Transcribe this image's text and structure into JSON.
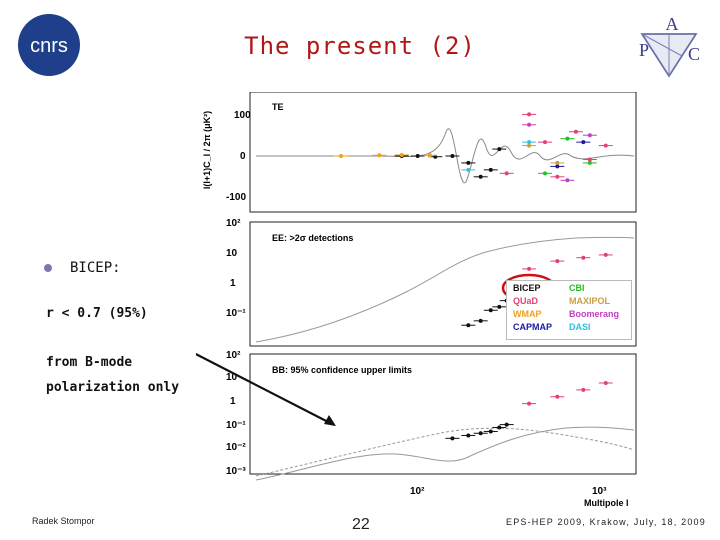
{
  "slide": {
    "title": "The present (2)",
    "bullet": "BICEP:",
    "r_limit": "r < 0.7 (95%)",
    "from_text": "from B-mode polarization only",
    "footer_left": "Radek Stompor",
    "page_number": "22",
    "footer_right": "EPS-HEP 2009, Krakow, July, 18, 2009",
    "accent_color": "#b01818"
  },
  "logos": {
    "cnrs": {
      "icon": "cnrs-logo",
      "text": "cnrs"
    },
    "apc": {
      "icon": "apc-logo",
      "letters": [
        "A",
        "P",
        "C"
      ]
    }
  },
  "chart_data": [
    {
      "type": "scatter",
      "panel": "TE",
      "title": "TE",
      "ylabel": "l(l+1)C_l / 2π (μK²)",
      "xscale": "log",
      "yticks": [
        "100",
        "0",
        "-100"
      ],
      "ylim": [
        -150,
        150
      ],
      "series": [
        {
          "name": "BICEP",
          "color": "#111111",
          "x": [
            30,
            40,
            55,
            75,
            100,
            125,
            150,
            175
          ],
          "y": [
            0,
            0,
            -2,
            0,
            -20,
            -60,
            -40,
            20
          ]
        },
        {
          "name": "QUaD",
          "color": "#e3407a",
          "x": [
            200,
            300,
            400,
            500,
            700,
            900,
            1200
          ],
          "y": [
            -50,
            120,
            40,
            -60,
            70,
            -10,
            30
          ]
        },
        {
          "name": "WMAP",
          "color": "#f0a020",
          "x": [
            10,
            20,
            30,
            50
          ],
          "y": [
            0,
            2,
            3,
            2
          ]
        },
        {
          "name": "CAPMAP",
          "color": "#1a1aa0",
          "x": [
            500,
            800
          ],
          "y": [
            -30,
            40
          ]
        },
        {
          "name": "CBI",
          "color": "#22c022",
          "x": [
            400,
            600,
            900
          ],
          "y": [
            -50,
            50,
            -20
          ]
        },
        {
          "name": "MAXIPOL",
          "color": "#c8a040",
          "x": [
            300,
            500
          ],
          "y": [
            30,
            -20
          ]
        },
        {
          "name": "Boomerang",
          "color": "#c040c0",
          "x": [
            300,
            600,
            900
          ],
          "y": [
            90,
            -70,
            60
          ]
        },
        {
          "name": "DASI",
          "color": "#30c0e0",
          "x": [
            100,
            300
          ],
          "y": [
            -40,
            40
          ]
        }
      ]
    },
    {
      "type": "scatter",
      "panel": "EE",
      "title": "EE: >2σ detections",
      "xscale": "log",
      "yscale": "log",
      "yticks": [
        "10²",
        "10",
        "1",
        "10⁻¹"
      ],
      "series": [
        {
          "name": "BICEP",
          "color": "#111111",
          "x": [
            100,
            125,
            150,
            175,
            200,
            225
          ],
          "y": [
            0.3,
            0.4,
            0.8,
            1.0,
            1.5,
            3
          ]
        },
        {
          "name": "QUaD",
          "color": "#e3407a",
          "x": [
            300,
            500,
            800,
            1200
          ],
          "y": [
            12,
            20,
            25,
            30
          ]
        }
      ]
    },
    {
      "type": "scatter",
      "panel": "BB",
      "title": "BB: 95% confidence upper limits",
      "xlabel": "Multipole l",
      "xscale": "log",
      "yscale": "log",
      "xticks": [
        "10²",
        "10³"
      ],
      "yticks": [
        "10²",
        "10",
        "1",
        "10⁻¹",
        "10⁻²",
        "10⁻³"
      ],
      "series": [
        {
          "name": "BICEP",
          "color": "#111111",
          "x": [
            75,
            100,
            125,
            150,
            175,
            200
          ],
          "y": [
            0.03,
            0.04,
            0.05,
            0.06,
            0.09,
            0.12
          ]
        },
        {
          "name": "QUaD",
          "color": "#e3407a",
          "x": [
            300,
            500,
            800,
            1200
          ],
          "y": [
            1,
            2,
            4,
            8
          ]
        }
      ]
    }
  ],
  "legend": {
    "items": [
      {
        "label": "BICEP",
        "color": "#111111"
      },
      {
        "label": "QUaD",
        "color": "#e3407a"
      },
      {
        "label": "WMAP",
        "color": "#f0a020"
      },
      {
        "label": "CAPMAP",
        "color": "#1a1aa0"
      },
      {
        "label": "CBI",
        "color": "#22c022"
      },
      {
        "label": "MAXIPOL",
        "color": "#c8a040"
      },
      {
        "label": "Boomerang",
        "color": "#c040c0"
      },
      {
        "label": "DASI",
        "color": "#30c0e0"
      }
    ],
    "highlight_color": "#d01010"
  }
}
